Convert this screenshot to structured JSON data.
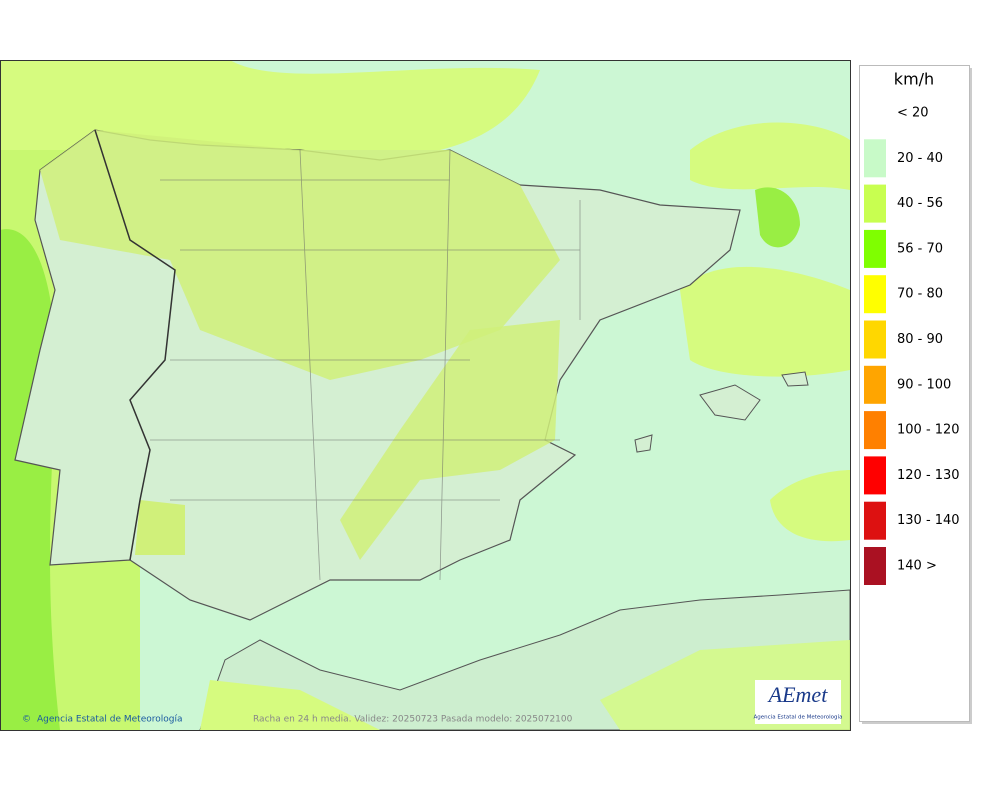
{
  "map": {
    "footer_credit": "Agencia Estatal de Meteorología",
    "footer_caption": "Racha en 24 h media. Validez: 20250723 Pasada modelo: 2025072100",
    "logo_text": "AEmet",
    "logo_subtitle": "Agencia Estatal de Meteorología"
  },
  "legend": {
    "title": "km/h",
    "items": [
      {
        "label": "< 20",
        "color": "#ffffff"
      },
      {
        "label": "20 - 40",
        "color": "#c8fac8"
      },
      {
        "label": "40 - 56",
        "color": "#c8ff50"
      },
      {
        "label": "56 - 70",
        "color": "#7fff00"
      },
      {
        "label": "70 - 80",
        "color": "#ffff00"
      },
      {
        "label": "80 - 90",
        "color": "#ffd700"
      },
      {
        "label": "90 - 100",
        "color": "#ffa500"
      },
      {
        "label": "100 - 120",
        "color": "#ff8000"
      },
      {
        "label": "120 - 130",
        "color": "#ff0000"
      },
      {
        "label": "130 - 140",
        "color": "#dd1111"
      },
      {
        "label": "140 >",
        "color": "#aa1122"
      }
    ]
  }
}
